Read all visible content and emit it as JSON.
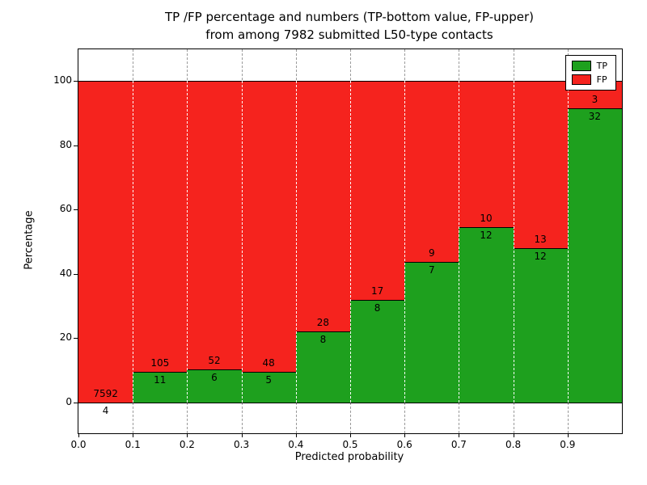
{
  "chart_data": {
    "type": "bar",
    "stacked": true,
    "normalized": "percent",
    "title_line1": "TP /FP percentage and numbers (TP-bottom value, FP-upper)",
    "title_line2": "from among 7982 submitted L50-type contacts",
    "xlabel": "Predicted probability",
    "ylabel": "Percentage",
    "bins": [
      {
        "x0": 0.0,
        "x1": 0.1,
        "tp": 4,
        "fp": 7592
      },
      {
        "x0": 0.1,
        "x1": 0.2,
        "tp": 11,
        "fp": 105
      },
      {
        "x0": 0.2,
        "x1": 0.3,
        "tp": 6,
        "fp": 52
      },
      {
        "x0": 0.3,
        "x1": 0.4,
        "tp": 5,
        "fp": 48
      },
      {
        "x0": 0.4,
        "x1": 0.5,
        "tp": 8,
        "fp": 28
      },
      {
        "x0": 0.5,
        "x1": 0.6,
        "tp": 8,
        "fp": 17
      },
      {
        "x0": 0.6,
        "x1": 0.7,
        "tp": 7,
        "fp": 9
      },
      {
        "x0": 0.7,
        "x1": 0.8,
        "tp": 12,
        "fp": 10
      },
      {
        "x0": 0.8,
        "x1": 0.9,
        "tp": 12,
        "fp": 13
      },
      {
        "x0": 0.9,
        "x1": 1.0,
        "tp": 32,
        "fp": 3
      }
    ],
    "xticks": [
      "0.0",
      "0.1",
      "0.2",
      "0.3",
      "0.4",
      "0.5",
      "0.6",
      "0.7",
      "0.8",
      "0.9"
    ],
    "yticks": [
      0,
      20,
      40,
      60,
      80,
      100
    ],
    "xlim": [
      0.0,
      1.0
    ],
    "ylim": [
      -9.5,
      110
    ],
    "legend": [
      {
        "label": "TP",
        "color": "#1ea01e"
      },
      {
        "label": "FP",
        "color": "#f5231e"
      }
    ],
    "colors": {
      "tp": "#1ea01e",
      "fp": "#f5231e"
    },
    "grid": "vertical-dashed",
    "legend_position": "upper-right"
  }
}
